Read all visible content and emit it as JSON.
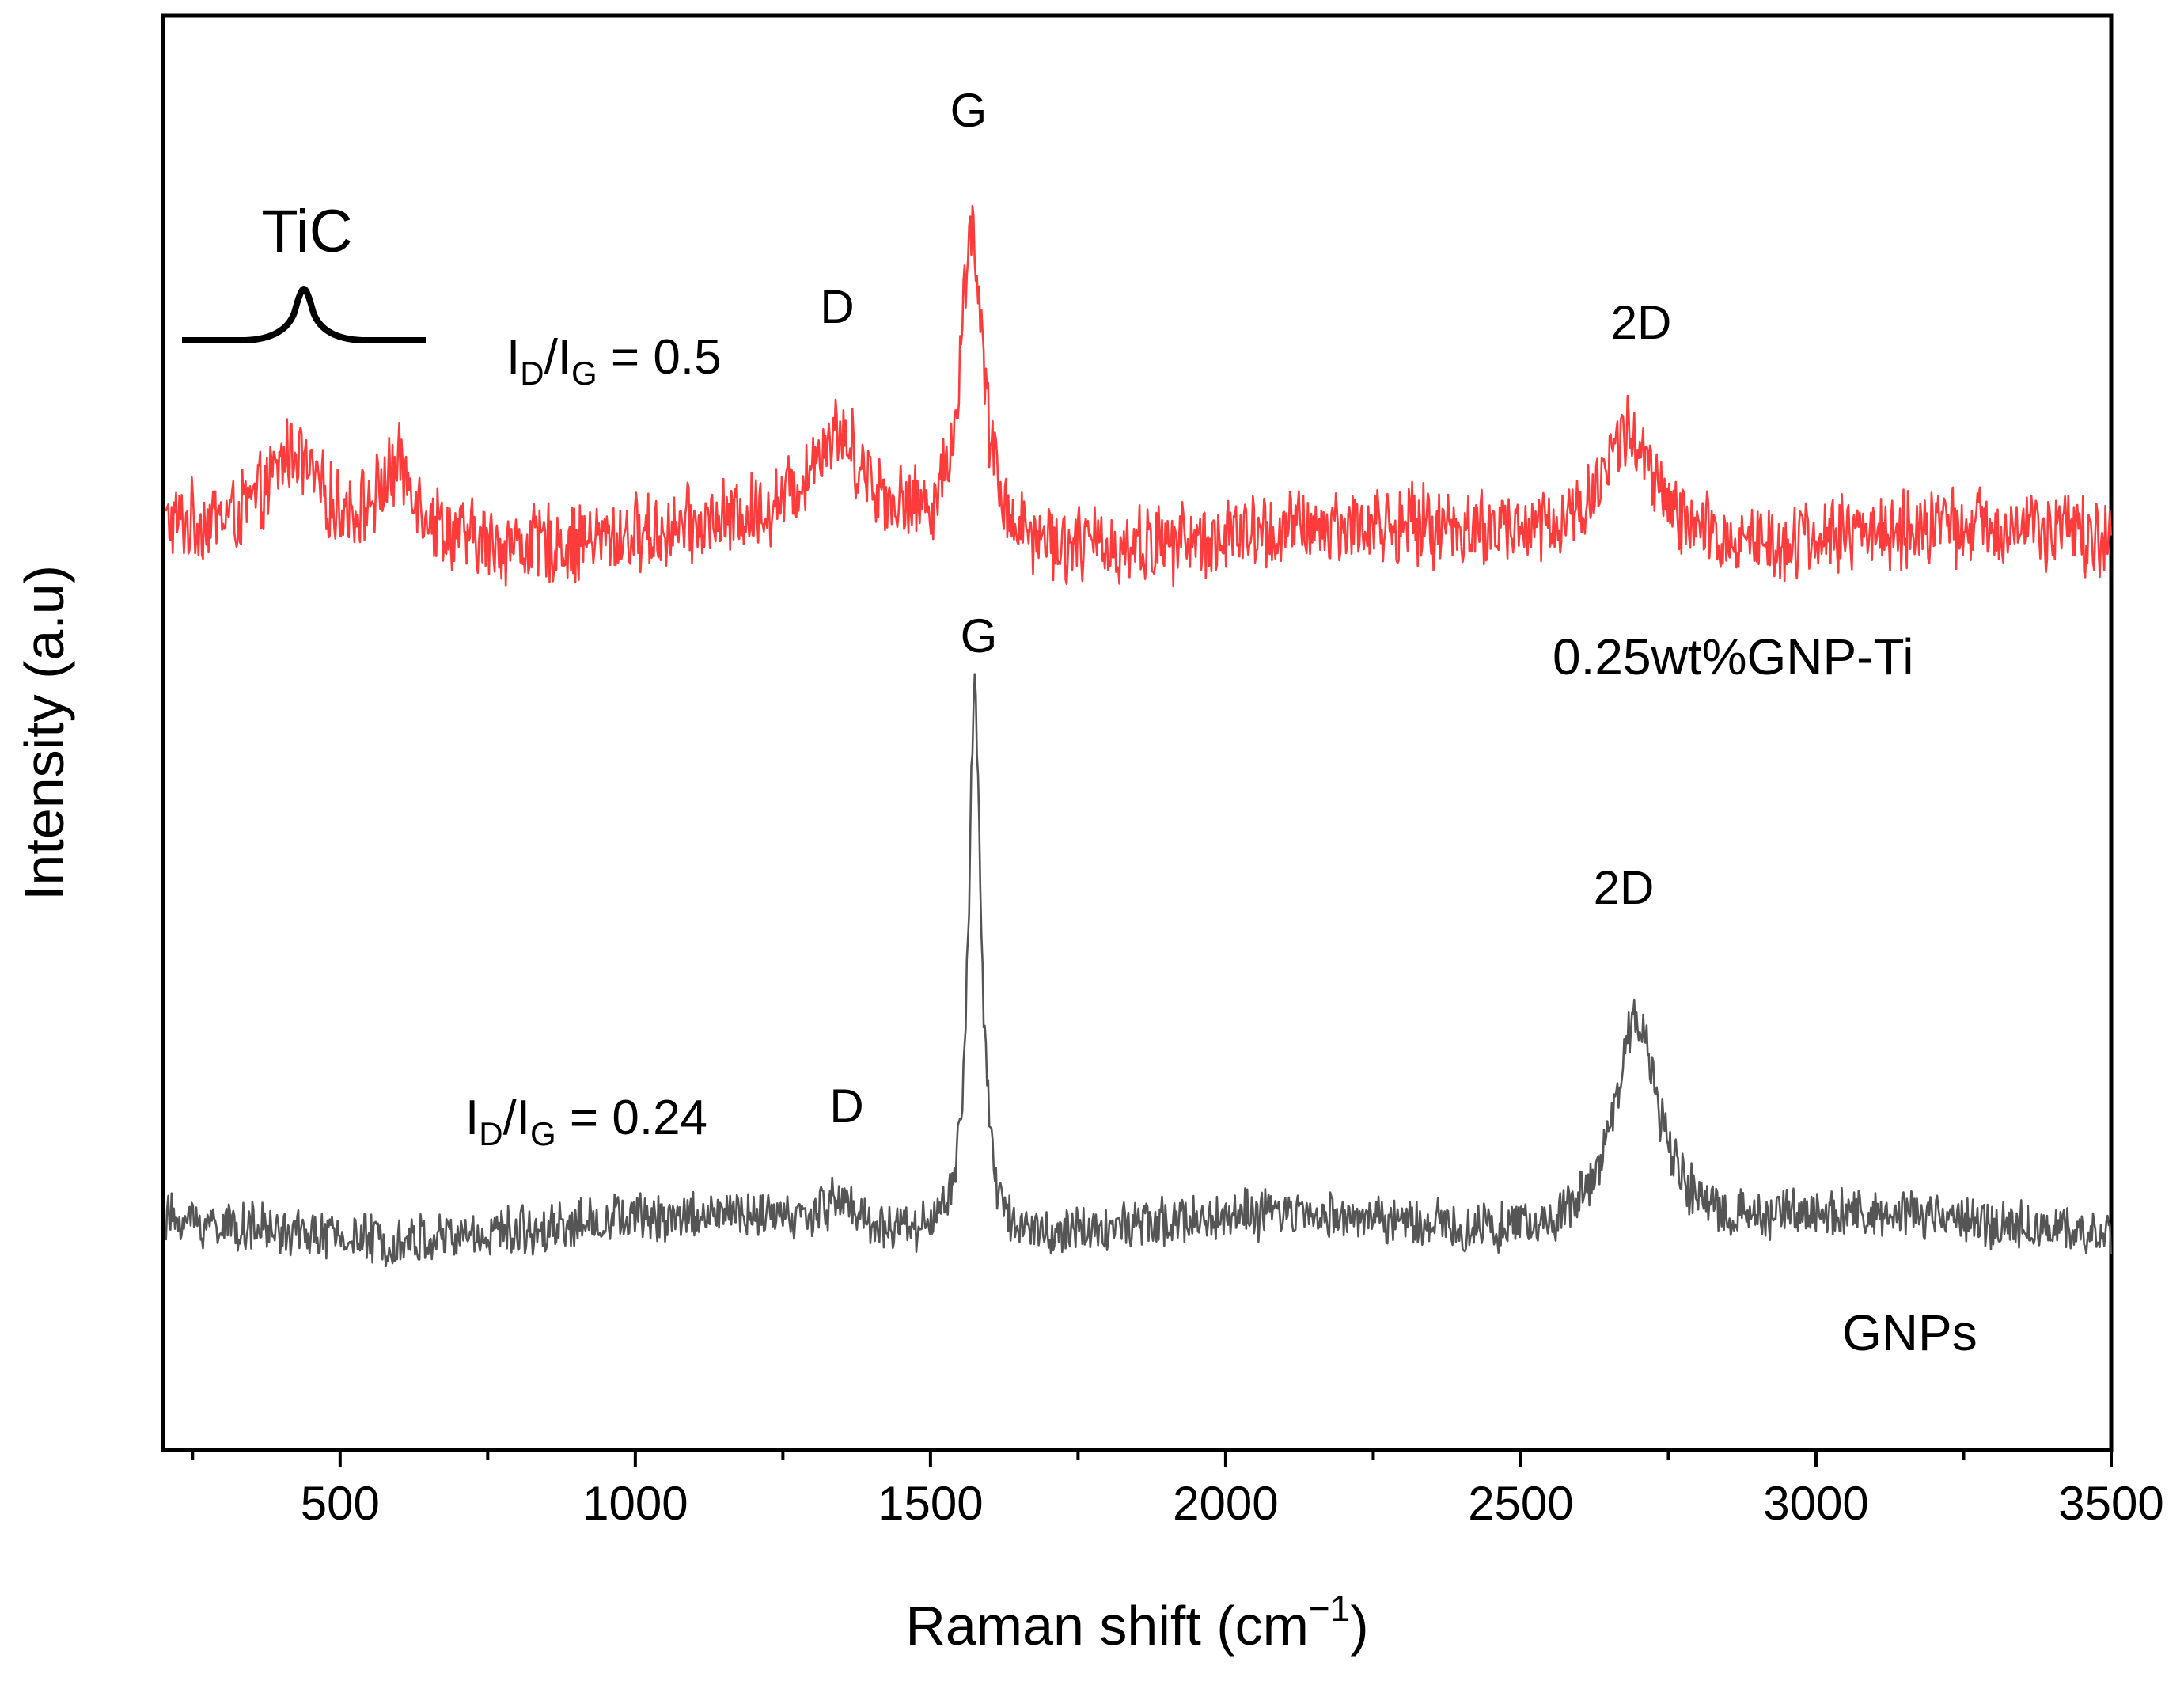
{
  "chart_data": {
    "type": "line",
    "title": "",
    "xlabel": "Raman shift (cm",
    "xlabel_superscript": "−1",
    "xlabel_close": ")",
    "ylabel": "Intensity (a.u)",
    "xlim": [
      200,
      3500
    ],
    "ylim": [
      0,
      10
    ],
    "x_ticks": [
      500,
      1000,
      1500,
      2000,
      2500,
      3000,
      3500
    ],
    "x_tick_labels": [
      "500",
      "1000",
      "1500",
      "2000",
      "2500",
      "3000",
      "3500"
    ],
    "x_minor_step": 250,
    "y_ticks_shown": false,
    "series": [
      {
        "name": "0.25wt%GNP-Ti",
        "color": "#ff3b3b",
        "baseline": 6.35,
        "noise_amplitude": 0.32,
        "peaks": [
          {
            "label": "TiC",
            "x": 420,
            "height": 0.55,
            "width": 45
          },
          {
            "label": "TiC",
            "x": 600,
            "height": 0.5,
            "width": 45
          },
          {
            "label": "D",
            "x": 1340,
            "height": 0.65,
            "width": 60
          },
          {
            "label": "G",
            "x": 1570,
            "height": 2.2,
            "width": 22
          },
          {
            "label": "2D",
            "x": 2680,
            "height": 0.8,
            "width": 55
          }
        ]
      },
      {
        "name": "GNPs",
        "color": "#555555",
        "baseline": 1.55,
        "noise_amplitude": 0.2,
        "peaks": [
          {
            "label": "D",
            "x": 1345,
            "height": 0.2,
            "width": 30
          },
          {
            "label": "G",
            "x": 1575,
            "height": 3.75,
            "width": 13
          },
          {
            "label": "2D",
            "x": 2695,
            "height": 1.55,
            "width": 45
          }
        ]
      }
    ],
    "annotations": {
      "tic": "TiC",
      "top_ratio_base": "I",
      "top_ratio_sub1": "D",
      "top_ratio_mid": "/I",
      "top_ratio_sub2": "G",
      "top_ratio_value": " = 0.5",
      "bottom_ratio_base": "I",
      "bottom_ratio_sub1": "D",
      "bottom_ratio_mid": "/I",
      "bottom_ratio_sub2": "G",
      "bottom_ratio_value": " = 0.24",
      "top_D": "D",
      "top_G": "G",
      "top_2D": "2D",
      "bottom_D": "D",
      "bottom_G": "G",
      "bottom_2D": "2D",
      "top_series_label": "0.25wt%GNP-Ti",
      "bottom_series_label": "GNPs"
    }
  }
}
